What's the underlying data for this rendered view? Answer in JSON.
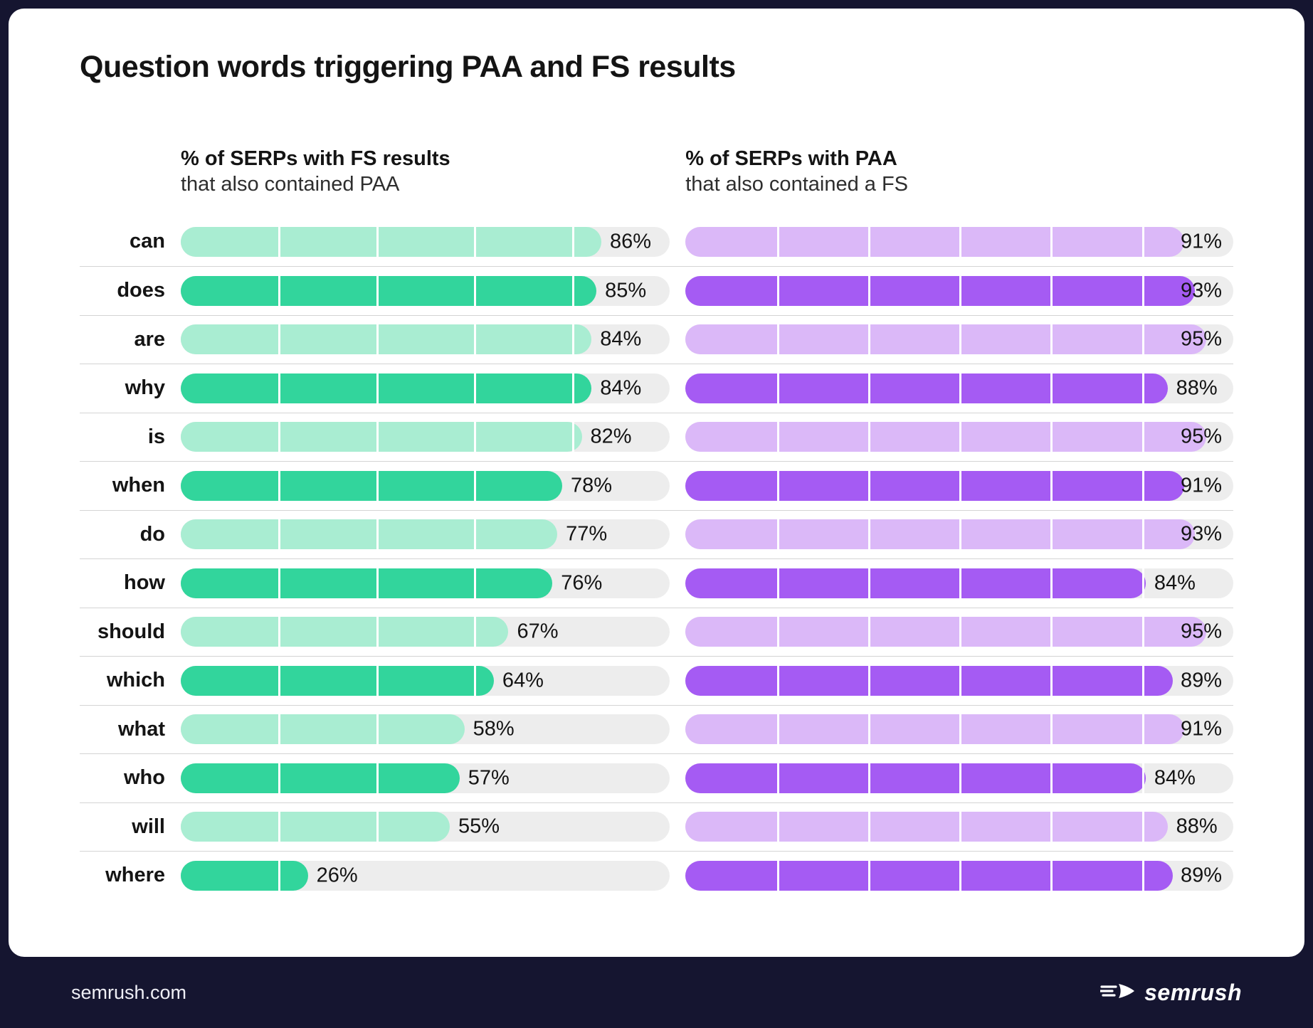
{
  "chart_data": {
    "type": "bar",
    "orientation": "horizontal",
    "title": "Question words triggering PAA and FS results",
    "xlim": [
      0,
      100
    ],
    "track_color": "#ededed",
    "categories": [
      "can",
      "does",
      "are",
      "why",
      "is",
      "when",
      "do",
      "how",
      "should",
      "which",
      "what",
      "who",
      "will",
      "where"
    ],
    "series": [
      {
        "key": "fs",
        "name": "% of SERPs with FS results",
        "subtitle": "that also contained PAA",
        "unit": "%",
        "segments": 5,
        "colors": {
          "light": "#a9edd2",
          "dark": "#32d59c"
        },
        "values": [
          86,
          85,
          84,
          84,
          82,
          78,
          77,
          76,
          67,
          64,
          58,
          57,
          55,
          26
        ]
      },
      {
        "key": "paa",
        "name": "% of SERPs with PAA",
        "subtitle": "that also contained a FS",
        "unit": "%",
        "segments": 6,
        "colors": {
          "light": "#dbb8f8",
          "dark": "#a55bf3"
        },
        "values": [
          91,
          93,
          95,
          88,
          95,
          91,
          93,
          84,
          95,
          89,
          91,
          84,
          88,
          89
        ]
      }
    ]
  },
  "footer": {
    "site": "semrush.com",
    "brand": "semrush"
  }
}
